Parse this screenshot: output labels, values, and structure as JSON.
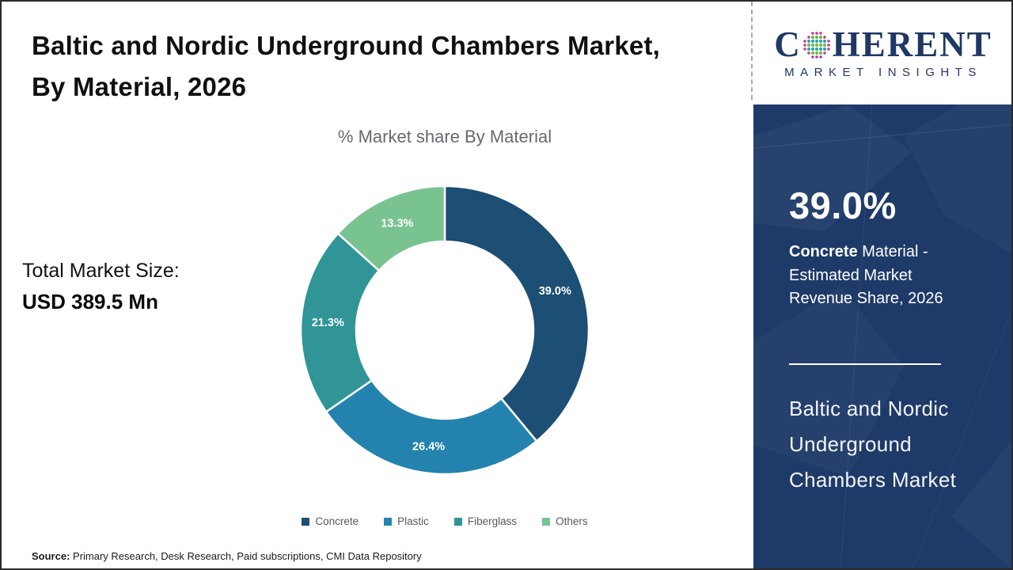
{
  "header": {
    "title": "Baltic and Nordic Underground Chambers Market, By Material, 2026"
  },
  "logo": {
    "brand_first_letter": "C",
    "brand_rest": "HERENT",
    "tagline": "MARKET INSIGHTS",
    "navy": "#1F3864",
    "globe_icon": "dotted-globe",
    "dot_colors": {
      "outer": "#BE3C8F",
      "green": "#69BD4B",
      "teal": "#2FA3A8"
    }
  },
  "total_market": {
    "label": "Total Market Size:",
    "value": "USD 389.5 Mn"
  },
  "chart_data": {
    "type": "pie",
    "subtype": "donut",
    "title": "% Market share By Material",
    "categories": [
      "Concrete",
      "Plastic",
      "Fiberglass",
      "Others"
    ],
    "values": [
      39.0,
      26.4,
      21.3,
      13.3
    ],
    "labels": [
      "39.0%",
      "26.4%",
      "21.3%",
      "13.3%"
    ],
    "unit": "%",
    "colors": [
      "#1D4E74",
      "#2483AE",
      "#319597",
      "#79C391"
    ],
    "start_angle_deg": 0,
    "direction": "clockwise",
    "donut_hole_ratio": 0.615,
    "legend_position": "bottom",
    "legend_text_color": "#595959"
  },
  "sidebar": {
    "background": "#1E3A68",
    "stat_value": "39.0%",
    "stat_desc_bold": "Concrete",
    "stat_desc_rest": " Material - Estimated Market Revenue Share, 2026",
    "market_name": "Baltic and Nordic Underground Chambers Market"
  },
  "source": {
    "label": "Source:",
    "text": " Primary Research, Desk Research, Paid subscriptions, CMI Data Repository"
  }
}
